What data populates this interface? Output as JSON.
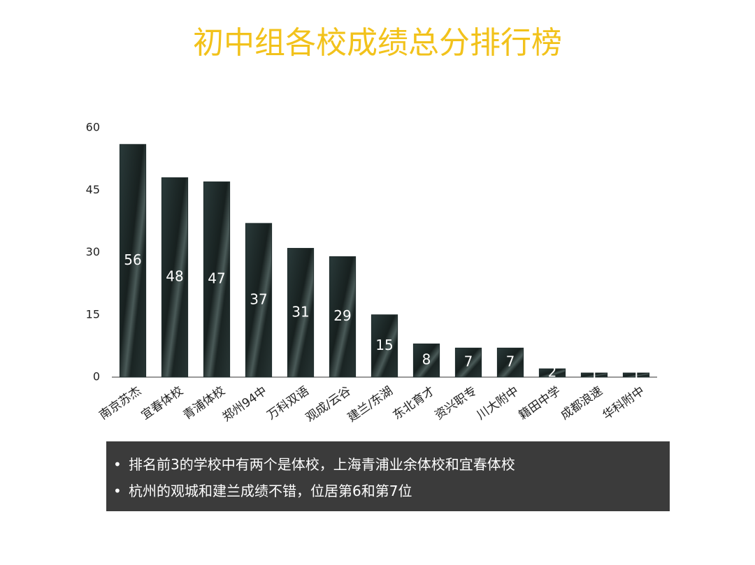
{
  "chart_data": {
    "type": "bar",
    "title": "初中组各校成绩总分排行榜",
    "categories": [
      "南京苏杰",
      "宜春体校",
      "青浦体校",
      "郑州94中",
      "万科双语",
      "观成/云谷",
      "建兰/东湖",
      "东北育才",
      "资兴职专",
      "川大附中",
      "籍田中学",
      "成都浪速",
      "华科附中"
    ],
    "values": [
      56,
      48,
      47,
      37,
      31,
      29,
      15,
      8,
      7,
      7,
      2,
      1,
      1
    ],
    "color": "#1e2b2b",
    "ylim": [
      0,
      60
    ],
    "yticks": [
      0,
      15,
      30,
      45,
      60
    ],
    "grid": false
  },
  "notes": [
    "排名前3的学校中有两个是体校，上海青浦业余体校和宜春体校",
    "杭州的观城和建兰成绩不错，位居第6和第7位"
  ]
}
